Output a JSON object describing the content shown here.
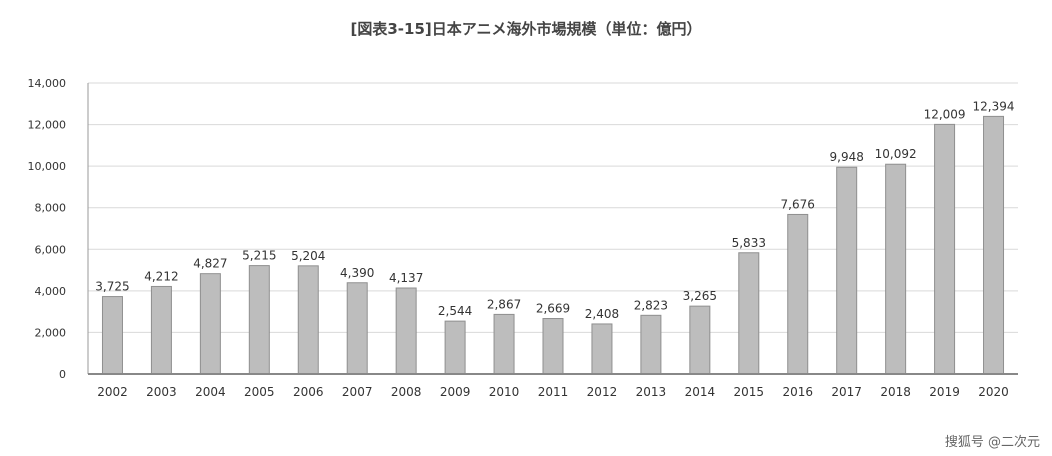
{
  "chart_data": {
    "type": "bar",
    "title": "[図表3-15]日本アニメ海外市場規模（単位：億円）",
    "categories": [
      "2002",
      "2003",
      "2004",
      "2005",
      "2006",
      "2007",
      "2008",
      "2009",
      "2010",
      "2011",
      "2012",
      "2013",
      "2014",
      "2015",
      "2016",
      "2017",
      "2018",
      "2019",
      "2020"
    ],
    "values": [
      3725,
      4212,
      4827,
      5215,
      5204,
      4390,
      4137,
      2544,
      2867,
      2669,
      2408,
      2823,
      3265,
      5833,
      7676,
      9948,
      10092,
      12009,
      12394
    ],
    "data_labels": [
      "3,725",
      "4,212",
      "4,827",
      "5,215",
      "5,204",
      "4,390",
      "4,137",
      "2,544",
      "2,867",
      "2,669",
      "2,408",
      "2,823",
      "3,265",
      "5,833",
      "7,676",
      "9,948",
      "10,092",
      "12,009",
      "12,394"
    ],
    "ylim": [
      0,
      14000
    ],
    "yticks": [
      0,
      2000,
      4000,
      6000,
      8000,
      10000,
      12000,
      14000
    ],
    "ytick_labels": [
      "0",
      "2,000",
      "4,000",
      "6,000",
      "8,000",
      "10,000",
      "12,000",
      "14,000"
    ],
    "grid": true,
    "bar_color": "#bdbdbd",
    "bar_stroke": "#8f8f8f"
  },
  "watermark": "搜狐号 @二次元"
}
